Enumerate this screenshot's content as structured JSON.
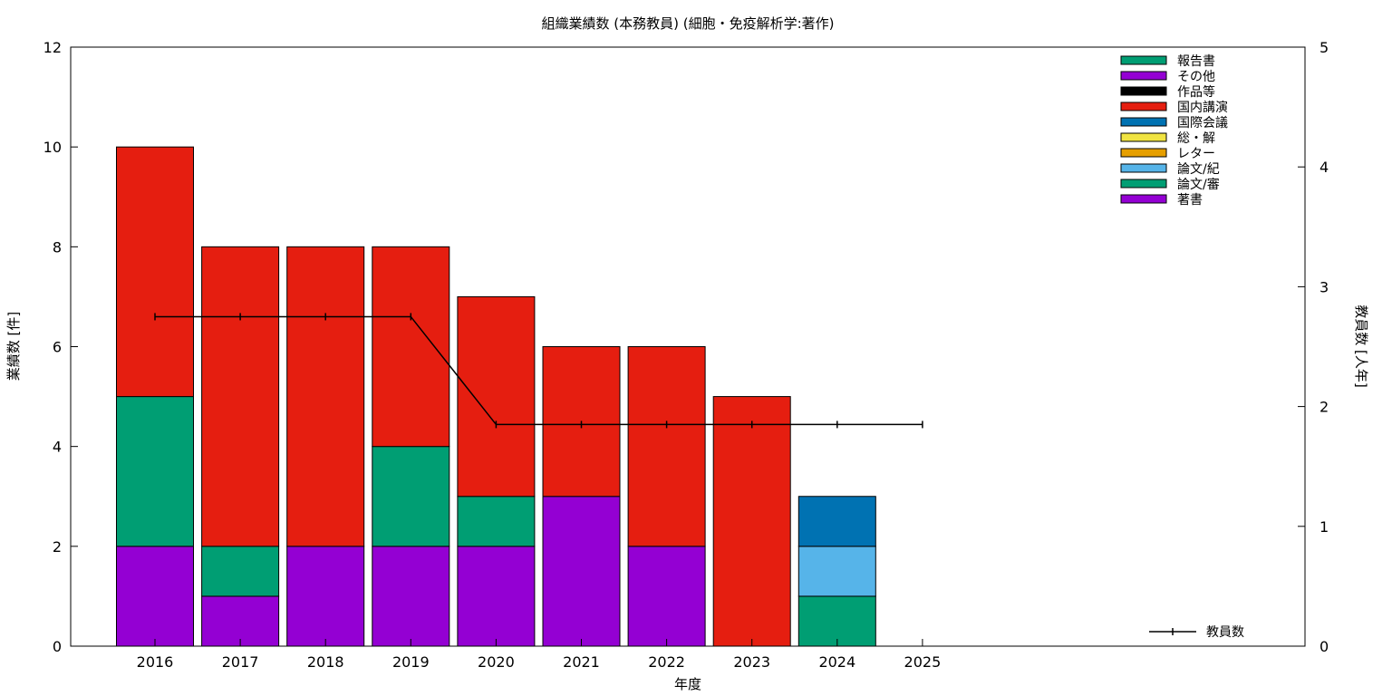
{
  "chart_data": {
    "type": "bar",
    "title": "組織業績数 (本務教員) (細胞・免疫解析学:著作)",
    "xlabel": "年度",
    "ylabel": "業績数 [件]",
    "y2label": "教員数 [人年]",
    "categories": [
      "2016",
      "2017",
      "2018",
      "2019",
      "2020",
      "2021",
      "2022",
      "2023",
      "2024",
      "2025"
    ],
    "ylim": [
      0,
      12
    ],
    "yticks": [
      0,
      2,
      4,
      6,
      8,
      10,
      12
    ],
    "y2lim": [
      0,
      5
    ],
    "y2ticks": [
      0,
      1,
      2,
      3,
      4,
      5
    ],
    "stacked": true,
    "legend_position": "top-right",
    "series": [
      {
        "name": "著書",
        "color": "#9400d3",
        "values": [
          2,
          1,
          2,
          2,
          2,
          3,
          2,
          0,
          0,
          0
        ]
      },
      {
        "name": "論文/審",
        "color": "#009e73",
        "values": [
          3,
          1,
          0,
          2,
          1,
          0,
          0,
          0,
          1,
          0
        ]
      },
      {
        "name": "論文/紀",
        "color": "#56b4e9",
        "values": [
          0,
          0,
          0,
          0,
          0,
          0,
          0,
          0,
          1,
          0
        ]
      },
      {
        "name": "レター",
        "color": "#e69f00",
        "values": [
          0,
          0,
          0,
          0,
          0,
          0,
          0,
          0,
          0,
          0
        ]
      },
      {
        "name": "総・解",
        "color": "#f0e442",
        "values": [
          0,
          0,
          0,
          0,
          0,
          0,
          0,
          0,
          0,
          0
        ]
      },
      {
        "name": "国際会議",
        "color": "#0072b2",
        "values": [
          0,
          0,
          0,
          0,
          0,
          0,
          0,
          0,
          1,
          0
        ]
      },
      {
        "name": "国内講演",
        "color": "#e51e10",
        "values": [
          5,
          6,
          6,
          4,
          4,
          3,
          4,
          5,
          0,
          0
        ]
      },
      {
        "name": "作品等",
        "color": "#000000",
        "values": [
          0,
          0,
          0,
          0,
          0,
          0,
          0,
          0,
          0,
          0
        ]
      },
      {
        "name": "その他",
        "color": "#9400d3",
        "values": [
          0,
          0,
          0,
          0,
          0,
          0,
          0,
          0,
          0,
          0
        ]
      },
      {
        "name": "報告書",
        "color": "#009e73",
        "values": [
          0,
          0,
          0,
          0,
          0,
          0,
          0,
          0,
          0,
          0
        ]
      }
    ],
    "line_series": {
      "name": "教員数",
      "axis": "y2",
      "color": "#000000",
      "values": [
        2.75,
        2.75,
        2.75,
        2.75,
        1.85,
        1.85,
        1.85,
        1.85,
        1.85,
        1.85
      ]
    }
  }
}
